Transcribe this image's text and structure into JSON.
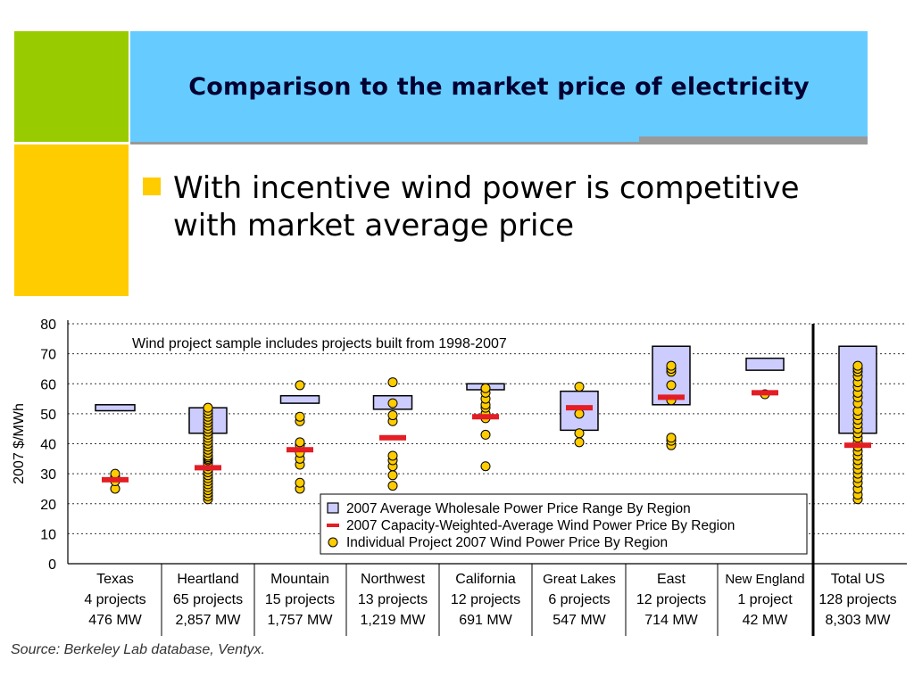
{
  "slide": {
    "title": "Comparison to the market price of electricity",
    "bullets": [
      "With incentive wind power is competitive with market average price"
    ],
    "source": "Source: Berkeley Lab database, Ventyx."
  },
  "colors": {
    "green_block": "#99cc00",
    "yellow_block": "#ffcc00",
    "title_bar": "#66ccff",
    "range_box_fill": "#ccccff",
    "weighted_average_mark": "#e31e24",
    "project_dot_fill": "#ffcc00"
  },
  "chart_data": {
    "type": "scatter",
    "ylabel": "2007 $/MWh",
    "ylim": [
      0,
      80
    ],
    "yticks": [
      0,
      10,
      20,
      30,
      40,
      50,
      60,
      70,
      80
    ],
    "grid": "horizontal dashed",
    "legend_position": "bottom-center",
    "annotation": "Wind project sample includes projects built from 1998-2007",
    "legend": [
      "2007 Average Wholesale Power Price Range By Region",
      "2007 Capacity-Weighted-Average Wind Power Price By Region",
      "Individual Project 2007 Wind Power Price By Region"
    ],
    "categories": [
      {
        "name": "Texas",
        "projects": "4 projects",
        "capacity": "476 MW"
      },
      {
        "name": "Heartland",
        "projects": "65 projects",
        "capacity": "2,857 MW"
      },
      {
        "name": "Mountain",
        "projects": "15 projects",
        "capacity": "1,757 MW"
      },
      {
        "name": "Northwest",
        "projects": "13 projects",
        "capacity": "1,219 MW"
      },
      {
        "name": "California",
        "projects": "12 projects",
        "capacity": "691 MW"
      },
      {
        "name": "Great Lakes",
        "projects": "6 projects",
        "capacity": "547 MW"
      },
      {
        "name": "East",
        "projects": "12 projects",
        "capacity": "714 MW"
      },
      {
        "name": "New England",
        "projects": "1 project",
        "capacity": "42 MW"
      },
      {
        "name": "Total US",
        "projects": "128 projects",
        "capacity": "8,303 MW"
      }
    ],
    "series": [
      {
        "name": "2007 Average Wholesale Power Price Range By Region",
        "kind": "range",
        "values": [
          [
            51,
            53
          ],
          [
            43.5,
            52
          ],
          [
            53.5,
            56
          ],
          [
            51.5,
            56
          ],
          [
            58,
            60
          ],
          [
            44.5,
            57.5
          ],
          [
            53,
            72.5
          ],
          [
            64.5,
            68.5
          ],
          [
            43.5,
            72.5
          ]
        ]
      },
      {
        "name": "2007 Capacity-Weighted-Average Wind Power Price By Region",
        "kind": "average",
        "values": [
          28,
          32,
          38,
          42,
          49,
          52,
          55.5,
          57,
          39.5
        ]
      },
      {
        "name": "Individual Project 2007 Wind Power Price By Region",
        "kind": "points",
        "values": [
          [
            25,
            27.5,
            29,
            30
          ],
          [
            21.5,
            22.5,
            23.5,
            24.5,
            25.5,
            26.5,
            27.5,
            28.5,
            29.5,
            30.5,
            31.5,
            32.5,
            33.5,
            34.5,
            35,
            35.5,
            36,
            37,
            38,
            39,
            40,
            41,
            42,
            43,
            44,
            45,
            46,
            47,
            48,
            49,
            50,
            51,
            52
          ],
          [
            25,
            27,
            33,
            35,
            37,
            39.5,
            40.5,
            47.5,
            49,
            59.5
          ],
          [
            26,
            29.5,
            32.5,
            34.5,
            36,
            47.5,
            49.5,
            53.5,
            60.5
          ],
          [
            32.5,
            43,
            48.5,
            50,
            52,
            53,
            55,
            57,
            58.5
          ],
          [
            40.5,
            43.5,
            50,
            59
          ],
          [
            39.5,
            41,
            42,
            54.5,
            59.5,
            64,
            65,
            66
          ],
          [
            56.5
          ],
          [
            21.5,
            23,
            25,
            27,
            28.5,
            30,
            31.5,
            33,
            34.5,
            36,
            37.5,
            39,
            40.5,
            42,
            43.5,
            45,
            46.5,
            48,
            49.5,
            51,
            53.5,
            55.5,
            57,
            59,
            60.5,
            62.5,
            64,
            65,
            66
          ]
        ]
      }
    ]
  }
}
